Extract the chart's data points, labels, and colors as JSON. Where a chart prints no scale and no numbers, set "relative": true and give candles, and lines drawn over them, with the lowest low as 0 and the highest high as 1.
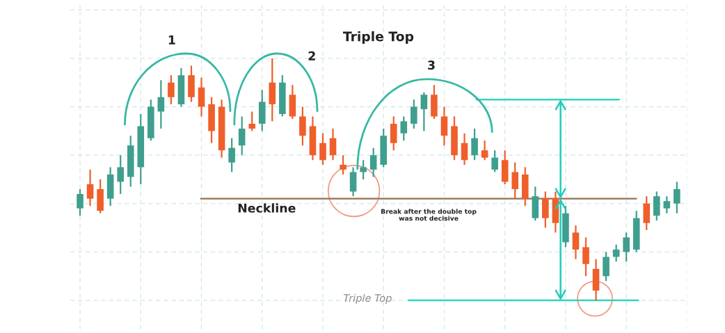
{
  "chart_data": {
    "type": "candlestick",
    "title": "Triple Top",
    "relative": true,
    "grid": true,
    "categories": [
      null,
      null,
      null,
      null,
      null,
      null,
      null,
      null,
      null,
      null,
      null,
      null,
      null,
      null,
      null,
      null,
      null,
      null,
      null,
      null,
      null,
      null,
      null,
      null,
      null,
      null,
      null,
      null,
      null,
      null,
      null,
      null,
      null,
      null,
      null,
      null,
      null,
      null,
      null,
      null,
      null,
      null,
      null,
      null,
      null,
      null,
      null,
      null,
      null,
      null,
      null,
      null,
      null,
      null,
      null,
      null,
      null,
      null,
      null,
      null
    ],
    "ohlc": [
      [
        0.38,
        0.46,
        0.35,
        0.44
      ],
      [
        0.48,
        0.54,
        0.39,
        0.42
      ],
      [
        0.46,
        0.5,
        0.36,
        0.37
      ],
      [
        0.42,
        0.55,
        0.39,
        0.52
      ],
      [
        0.49,
        0.6,
        0.44,
        0.55
      ],
      [
        0.51,
        0.68,
        0.47,
        0.64
      ],
      [
        0.55,
        0.77,
        0.48,
        0.72
      ],
      [
        0.67,
        0.83,
        0.66,
        0.8
      ],
      [
        0.78,
        0.91,
        0.71,
        0.84
      ],
      [
        0.9,
        0.93,
        0.81,
        0.84
      ],
      [
        0.81,
        0.96,
        0.8,
        0.93
      ],
      [
        0.93,
        0.97,
        0.82,
        0.84
      ],
      [
        0.88,
        0.92,
        0.76,
        0.8
      ],
      [
        0.81,
        0.84,
        0.65,
        0.7
      ],
      [
        0.8,
        0.83,
        0.59,
        0.62
      ],
      [
        0.57,
        0.67,
        0.53,
        0.63
      ],
      [
        0.64,
        0.76,
        0.6,
        0.71
      ],
      [
        0.73,
        0.78,
        0.7,
        0.71
      ],
      [
        0.73,
        0.87,
        0.7,
        0.82
      ],
      [
        0.9,
        1.0,
        0.74,
        0.81
      ],
      [
        0.77,
        0.93,
        0.76,
        0.9
      ],
      [
        0.85,
        0.89,
        0.75,
        0.76
      ],
      [
        0.76,
        0.8,
        0.64,
        0.68
      ],
      [
        0.72,
        0.76,
        0.58,
        0.6
      ],
      [
        0.65,
        0.69,
        0.56,
        0.58
      ],
      [
        0.67,
        0.71,
        0.58,
        0.6
      ],
      [
        0.56,
        0.6,
        0.52,
        0.54
      ],
      [
        0.45,
        0.55,
        0.43,
        0.53
      ],
      [
        0.53,
        0.58,
        0.5,
        0.55
      ],
      [
        0.54,
        0.63,
        0.51,
        0.6
      ],
      [
        0.56,
        0.71,
        0.55,
        0.68
      ],
      [
        0.73,
        0.76,
        0.62,
        0.65
      ],
      [
        0.69,
        0.76,
        0.66,
        0.74
      ],
      [
        0.73,
        0.83,
        0.71,
        0.8
      ],
      [
        0.79,
        0.86,
        0.7,
        0.85
      ],
      [
        0.85,
        0.89,
        0.75,
        0.76
      ],
      [
        0.76,
        0.8,
        0.64,
        0.68
      ],
      [
        0.72,
        0.76,
        0.58,
        0.6
      ],
      [
        0.65,
        0.69,
        0.56,
        0.58
      ],
      [
        0.6,
        0.71,
        0.58,
        0.67
      ],
      [
        0.62,
        0.66,
        0.58,
        0.59
      ],
      [
        0.54,
        0.62,
        0.53,
        0.59
      ],
      [
        0.58,
        0.62,
        0.48,
        0.49
      ],
      [
        0.53,
        0.57,
        0.42,
        0.46
      ],
      [
        0.52,
        0.55,
        0.39,
        0.42
      ],
      [
        0.34,
        0.47,
        0.33,
        0.43
      ],
      [
        0.42,
        0.45,
        0.3,
        0.34
      ],
      [
        0.42,
        0.45,
        0.28,
        0.32
      ],
      [
        0.24,
        0.39,
        0.22,
        0.36
      ],
      [
        0.28,
        0.31,
        0.17,
        0.21
      ],
      [
        0.22,
        0.26,
        0.1,
        0.15
      ],
      [
        0.13,
        0.17,
        0,
        0.04
      ],
      [
        0.1,
        0.2,
        0.08,
        0.18
      ],
      [
        0.18,
        0.23,
        0.16,
        0.21
      ],
      [
        0.2,
        0.28,
        0.16,
        0.26
      ],
      [
        0.21,
        0.37,
        0.2,
        0.34
      ],
      [
        0.4,
        0.43,
        0.29,
        0.32
      ],
      [
        0.35,
        0.45,
        0.33,
        0.43
      ],
      [
        0.38,
        0.43,
        0.36,
        0.41
      ],
      [
        0.4,
        0.49,
        0.36,
        0.46
      ]
    ],
    "colors": [
      "#3f9f8e",
      "#ef5f2a",
      "#ef5f2a",
      "#3f9f8e",
      "#3f9f8e",
      "#3f9f8e",
      "#3f9f8e",
      "#3f9f8e",
      "#3f9f8e",
      "#ef5f2a",
      "#3f9f8e",
      "#ef5f2a",
      "#ef5f2a",
      "#ef5f2a",
      "#ef5f2a",
      "#3f9f8e",
      "#3f9f8e",
      "#ef5f2a",
      "#3f9f8e",
      "#ef5f2a",
      "#3f9f8e",
      "#ef5f2a",
      "#ef5f2a",
      "#ef5f2a",
      "#ef5f2a",
      "#ef5f2a",
      "#ef5f2a",
      "#3f9f8e",
      "#3f9f8e",
      "#3f9f8e",
      "#3f9f8e",
      "#ef5f2a",
      "#3f9f8e",
      "#3f9f8e",
      "#3f9f8e",
      "#ef5f2a",
      "#ef5f2a",
      "#ef5f2a",
      "#ef5f2a",
      "#3f9f8e",
      "#ef5f2a",
      "#3f9f8e",
      "#ef5f2a",
      "#ef5f2a",
      "#ef5f2a",
      "#3f9f8e",
      "#ef5f2a",
      "#ef5f2a",
      "#3f9f8e",
      "#ef5f2a",
      "#ef5f2a",
      "#ef5f2a",
      "#3f9f8e",
      "#3f9f8e",
      "#3f9f8e",
      "#3f9f8e",
      "#ef5f2a",
      "#3f9f8e",
      "#3f9f8e",
      "#3f9f8e"
    ],
    "ref_lines": [
      {
        "axis": "y",
        "value": 0.42,
        "label": "Neckline",
        "color": "#a07d5e"
      },
      {
        "axis": "y",
        "value": 0.83,
        "color": "#2fd3c6"
      },
      {
        "axis": "y",
        "value": 0.0,
        "label": "Triple Top",
        "color": "#2fd3c6"
      }
    ],
    "annotations": [
      "1",
      "2",
      "3",
      "Break after the double top\nwas not decisive"
    ]
  }
}
